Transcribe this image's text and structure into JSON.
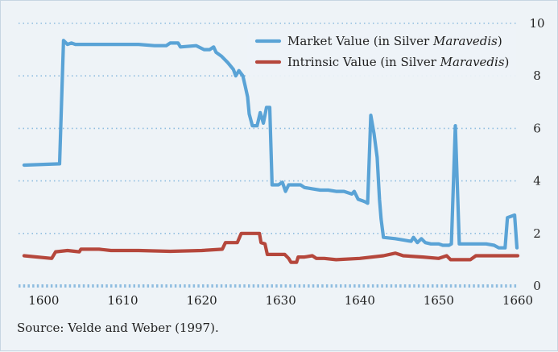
{
  "chart_data": {
    "type": "line",
    "title": "",
    "xlabel": "",
    "ylabel": "",
    "xlim": [
      1596.8,
      1660
    ],
    "ylim": [
      0,
      10
    ],
    "x_ticks": [
      1600,
      1610,
      1620,
      1630,
      1640,
      1650,
      1660
    ],
    "y_ticks": [
      0,
      2,
      4,
      6,
      8,
      10
    ],
    "y_axis_position": "right",
    "grid": "horizontal dotted",
    "legend_position": "top-right",
    "colors": {
      "market": "#5aa3d6",
      "intrinsic": "#b5473c",
      "grid": "#8fbde0",
      "background": "#eef3f7"
    },
    "series": [
      {
        "name": "Market Value (in Silver Maravedis)",
        "label_prefix": "Market Value (in Silver ",
        "label_italic": "Maravedis",
        "label_suffix": ")",
        "points": [
          [
            1597.5,
            4.6
          ],
          [
            1602.0,
            4.65
          ],
          [
            1602.5,
            9.35
          ],
          [
            1603.0,
            9.2
          ],
          [
            1603.5,
            9.25
          ],
          [
            1604.0,
            9.2
          ],
          [
            1610.0,
            9.2
          ],
          [
            1612.0,
            9.2
          ],
          [
            1614.0,
            9.15
          ],
          [
            1615.5,
            9.15
          ],
          [
            1616.0,
            9.25
          ],
          [
            1617.0,
            9.25
          ],
          [
            1617.3,
            9.1
          ],
          [
            1619.3,
            9.15
          ],
          [
            1620.3,
            9.0
          ],
          [
            1621.0,
            9.0
          ],
          [
            1621.5,
            9.1
          ],
          [
            1621.8,
            8.9
          ],
          [
            1622.5,
            8.75
          ],
          [
            1623.3,
            8.5
          ],
          [
            1624.0,
            8.25
          ],
          [
            1624.3,
            8.0
          ],
          [
            1624.7,
            8.2
          ],
          [
            1625.2,
            8.0
          ],
          [
            1625.5,
            7.6
          ],
          [
            1625.8,
            7.2
          ],
          [
            1626.0,
            6.55
          ],
          [
            1626.4,
            6.1
          ],
          [
            1627.0,
            6.1
          ],
          [
            1627.4,
            6.6
          ],
          [
            1627.8,
            6.2
          ],
          [
            1628.2,
            6.8
          ],
          [
            1628.6,
            6.8
          ],
          [
            1628.9,
            3.85
          ],
          [
            1629.7,
            3.85
          ],
          [
            1630.2,
            3.95
          ],
          [
            1630.6,
            3.6
          ],
          [
            1631.0,
            3.85
          ],
          [
            1632.5,
            3.85
          ],
          [
            1633.0,
            3.75
          ],
          [
            1634.0,
            3.7
          ],
          [
            1635.0,
            3.65
          ],
          [
            1636.0,
            3.65
          ],
          [
            1637.0,
            3.6
          ],
          [
            1638.0,
            3.6
          ],
          [
            1639.0,
            3.5
          ],
          [
            1639.3,
            3.6
          ],
          [
            1639.8,
            3.3
          ],
          [
            1640.3,
            3.25
          ],
          [
            1640.7,
            3.2
          ],
          [
            1641.0,
            3.15
          ],
          [
            1641.4,
            6.5
          ],
          [
            1641.8,
            5.8
          ],
          [
            1642.2,
            4.9
          ],
          [
            1642.5,
            3.3
          ],
          [
            1642.7,
            2.55
          ],
          [
            1643.0,
            1.85
          ],
          [
            1644.5,
            1.8
          ],
          [
            1645.5,
            1.75
          ],
          [
            1646.5,
            1.7
          ],
          [
            1646.8,
            1.85
          ],
          [
            1647.3,
            1.65
          ],
          [
            1647.8,
            1.8
          ],
          [
            1648.3,
            1.65
          ],
          [
            1649.0,
            1.6
          ],
          [
            1650.0,
            1.6
          ],
          [
            1650.5,
            1.55
          ],
          [
            1651.3,
            1.55
          ],
          [
            1651.6,
            1.6
          ],
          [
            1652.1,
            6.1
          ],
          [
            1652.6,
            1.6
          ],
          [
            1654.0,
            1.6
          ],
          [
            1656.0,
            1.6
          ],
          [
            1657.0,
            1.55
          ],
          [
            1657.6,
            1.45
          ],
          [
            1658.4,
            1.45
          ],
          [
            1658.7,
            2.6
          ],
          [
            1659.6,
            2.7
          ],
          [
            1659.9,
            1.45
          ]
        ]
      },
      {
        "name": "Intrinsic Value (in Silver Maravedis)",
        "label_prefix": "Intrinsic Value (in Silver ",
        "label_italic": "Maravedis",
        "label_suffix": ")",
        "points": [
          [
            1597.5,
            1.15
          ],
          [
            1601.0,
            1.05
          ],
          [
            1601.5,
            1.3
          ],
          [
            1603.0,
            1.35
          ],
          [
            1604.5,
            1.3
          ],
          [
            1604.7,
            1.4
          ],
          [
            1607.0,
            1.4
          ],
          [
            1608.5,
            1.35
          ],
          [
            1610.0,
            1.35
          ],
          [
            1612.0,
            1.35
          ],
          [
            1616.0,
            1.32
          ],
          [
            1620.0,
            1.35
          ],
          [
            1622.6,
            1.4
          ],
          [
            1623.0,
            1.65
          ],
          [
            1624.5,
            1.65
          ],
          [
            1625.0,
            2.0
          ],
          [
            1627.3,
            2.0
          ],
          [
            1627.5,
            1.65
          ],
          [
            1628.0,
            1.6
          ],
          [
            1628.3,
            1.2
          ],
          [
            1630.5,
            1.2
          ],
          [
            1631.0,
            1.05
          ],
          [
            1631.3,
            0.9
          ],
          [
            1632.0,
            0.9
          ],
          [
            1632.2,
            1.1
          ],
          [
            1633.0,
            1.1
          ],
          [
            1634.0,
            1.15
          ],
          [
            1634.5,
            1.05
          ],
          [
            1635.5,
            1.05
          ],
          [
            1637.0,
            1.0
          ],
          [
            1640.0,
            1.05
          ],
          [
            1643.0,
            1.15
          ],
          [
            1644.5,
            1.25
          ],
          [
            1645.5,
            1.15
          ],
          [
            1648.0,
            1.1
          ],
          [
            1650.0,
            1.05
          ],
          [
            1651.0,
            1.15
          ],
          [
            1651.5,
            1.0
          ],
          [
            1654.0,
            1.0
          ],
          [
            1654.7,
            1.15
          ],
          [
            1656.0,
            1.15
          ],
          [
            1660.0,
            1.15
          ]
        ]
      }
    ]
  },
  "source_note": "Source: Velde and Weber (1997)."
}
